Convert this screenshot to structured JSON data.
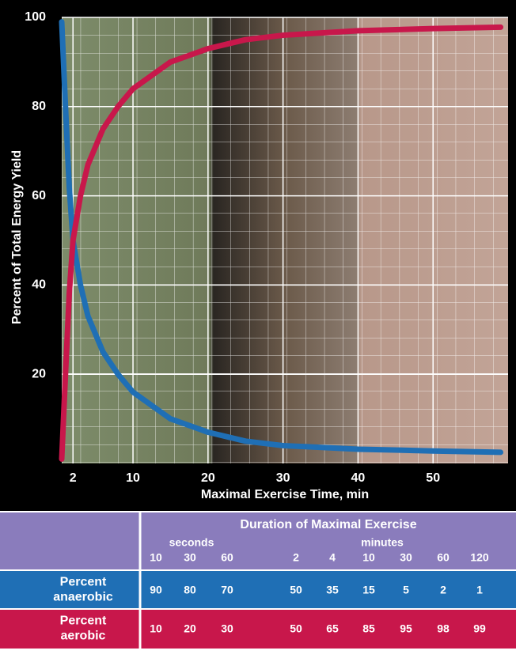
{
  "chart_data": {
    "type": "line",
    "xlabel": "Maximal Exercise Time, min",
    "ylabel": "Percent of Total Energy Yield",
    "x": [
      0.5,
      1,
      1.5,
      2,
      3,
      4,
      6,
      8,
      10,
      15,
      20,
      25,
      30,
      40,
      50,
      59
    ],
    "series": [
      {
        "color": "#1f6fb5",
        "values": [
          99,
          80,
          62,
          50,
          40,
          33,
          25,
          20,
          16,
          10,
          7,
          5,
          4,
          3.2,
          2.8,
          2.5
        ]
      },
      {
        "color": "#c8174b",
        "values": [
          1,
          20,
          38,
          50,
          60,
          67,
          75,
          80,
          84,
          90,
          93,
          95,
          96,
          97,
          97.5,
          97.8
        ]
      }
    ],
    "xlim": [
      0.5,
      60
    ],
    "ylim": [
      0,
      100
    ],
    "xticks": [
      2,
      10,
      20,
      30,
      40,
      50
    ],
    "yticks": [
      20,
      40,
      60,
      80,
      100
    ],
    "grid": true
  },
  "table": {
    "title": "Duration of Maximal Exercise",
    "groups": [
      {
        "label": "seconds",
        "columns": [
          "10",
          "30",
          "60"
        ]
      },
      {
        "label": "minutes",
        "columns": [
          "2",
          "4",
          "10",
          "30",
          "60",
          "120"
        ]
      }
    ],
    "rows": [
      {
        "label": [
          "Percent",
          "anaerobic"
        ],
        "color": "#1f6fb5",
        "values": [
          90,
          80,
          70,
          50,
          35,
          15,
          5,
          2,
          1
        ]
      },
      {
        "label": [
          "Percent",
          "aerobic"
        ],
        "color": "#c8174b",
        "values": [
          10,
          20,
          30,
          50,
          65,
          85,
          95,
          98,
          99
        ]
      }
    ]
  }
}
